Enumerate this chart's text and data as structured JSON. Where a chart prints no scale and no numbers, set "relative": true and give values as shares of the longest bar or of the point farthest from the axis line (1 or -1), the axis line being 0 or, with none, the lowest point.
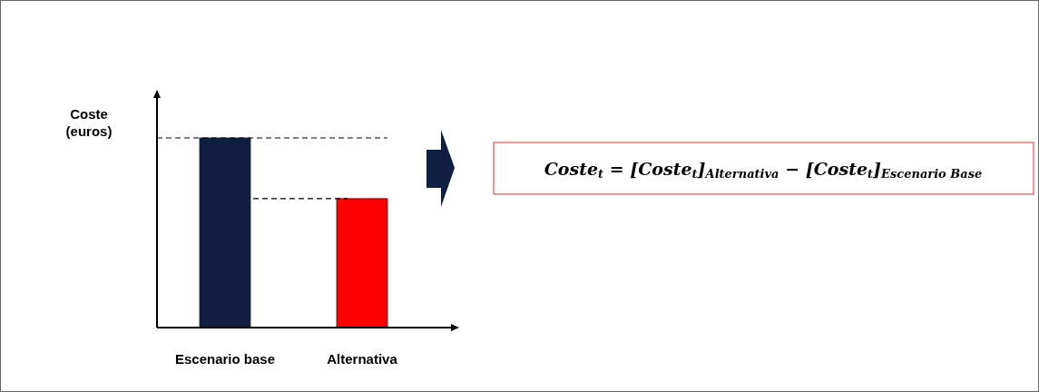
{
  "chart_data": {
    "type": "bar",
    "relative": true,
    "ylabel": "Coste (euros)",
    "categories": [
      "Escenario base",
      "Alternativa"
    ],
    "values": [
      1,
      0.68
    ],
    "colors": [
      "#0f1f42",
      "#ff0000"
    ],
    "ref_lines": [
      {
        "axis": "y",
        "value": 1,
        "line_style": "dashed",
        "color": "#000000"
      },
      {
        "axis": "y",
        "value": 0.68,
        "line_style": "dashed",
        "color": "#000000"
      }
    ],
    "annotations": [
      "Coste$_{t}$ = [Coste$_{t}$]$_{Alternativa}$ − [Coste$_{t}$]$_{Escenario Base}$"
    ]
  }
}
